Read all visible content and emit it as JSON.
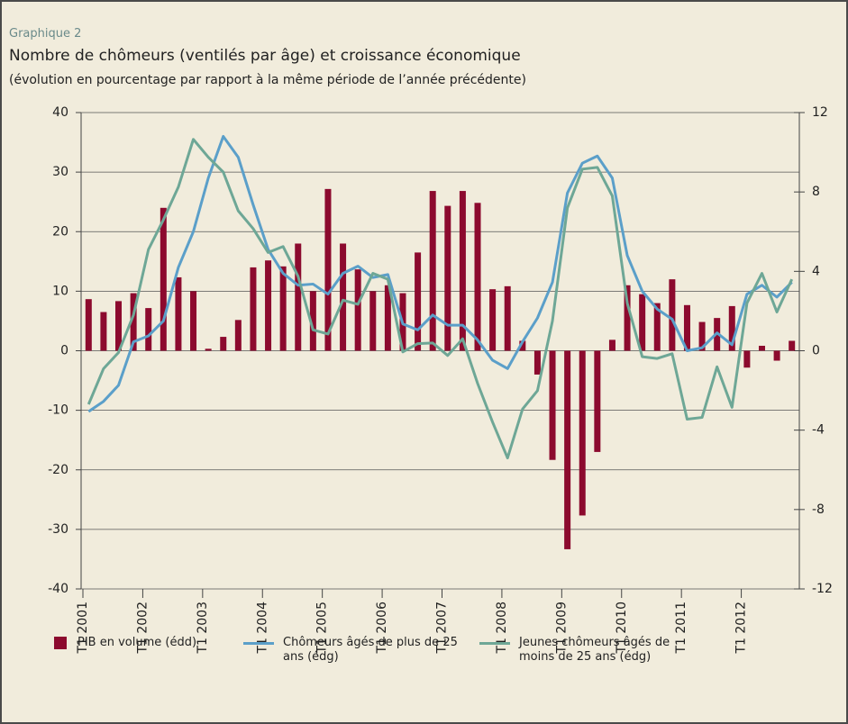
{
  "chart_data": {
    "type": "bar_line",
    "label": "Graphique 2",
    "title": "Nombre de chômeurs (ventilés par âge) et croissance économique",
    "subtitle": "(évolution en pourcentage par rapport à la même période de l’année précédente)",
    "categories": [
      "T1 2001",
      null,
      null,
      null,
      "T1 2002",
      null,
      null,
      null,
      "T1 2003",
      null,
      null,
      null,
      "T1 2004",
      null,
      null,
      null,
      "T1 2005",
      null,
      null,
      null,
      "T1 2006",
      null,
      null,
      null,
      "T1 2007",
      null,
      null,
      null,
      "T1 2008",
      null,
      null,
      null,
      "T1 2009",
      null,
      null,
      null,
      "T1 2010",
      null,
      null,
      null,
      "T1 2011",
      null,
      null,
      null,
      "T1 2012",
      null,
      null,
      null
    ],
    "ylim": [
      -40,
      40
    ],
    "yticks": [
      -40,
      -30,
      -20,
      -10,
      0,
      10,
      20,
      30,
      40
    ],
    "y2lim": [
      -12,
      12
    ],
    "y2ticks": [
      -12,
      -8,
      -4,
      0,
      4,
      8,
      12
    ],
    "grid": true,
    "series": [
      {
        "name": "PIB en volume (édd)",
        "type": "bar",
        "axis": "y2",
        "color": "#8c0a2e",
        "values": [
          2.6,
          1.95,
          2.5,
          2.9,
          2.15,
          7.2,
          3.7,
          3.0,
          0.1,
          0.7,
          1.55,
          4.2,
          4.55,
          4.25,
          5.4,
          3.0,
          8.15,
          5.4,
          4.1,
          3.0,
          3.3,
          2.9,
          4.95,
          8.05,
          7.3,
          8.05,
          7.45,
          3.1,
          3.25,
          0.5,
          -1.2,
          -5.5,
          -10,
          -8.3,
          -5.1,
          0.55,
          3.3,
          2.85,
          2.4,
          3.6,
          2.3,
          1.45,
          1.65,
          2.25,
          -0.85,
          0.25,
          -0.5,
          0.5
        ]
      },
      {
        "name": "Chômeurs âgés de plus de 25 ans (édg)",
        "type": "line",
        "color": "#5b9fc9",
        "values": [
          -10.2,
          -8.5,
          -5.8,
          1.5,
          2.5,
          5,
          14,
          20,
          29,
          36,
          32.5,
          24.5,
          17,
          13,
          11,
          11.2,
          9.5,
          13,
          14.2,
          12.3,
          12.8,
          4.5,
          3.5,
          6,
          4.3,
          4.3,
          1.8,
          -1.6,
          -3,
          1.5,
          5.5,
          11.5,
          26.5,
          31.5,
          32.7,
          29,
          16,
          10,
          7,
          5.3,
          0,
          0.5,
          3,
          1,
          9.5,
          11,
          9,
          11.5
        ]
      },
      {
        "name": "Jeunes chômeurs âgés de moins de 25 ans (édg)",
        "type": "line",
        "color": "#6ea796",
        "values": [
          -9,
          -3,
          -0.3,
          6,
          17,
          22,
          27.5,
          35.5,
          32.5,
          30,
          23.5,
          20.5,
          16.5,
          17.5,
          12.5,
          3.5,
          2.8,
          8.5,
          7.8,
          13,
          12,
          -0.2,
          1.2,
          1.3,
          -0.8,
          2,
          -5.5,
          -12,
          -18,
          -9.8,
          -6.7,
          5,
          24,
          30.5,
          30.8,
          26,
          8,
          -1,
          -1.3,
          -0.5,
          -11.5,
          -11.2,
          -2.7,
          -9.5,
          8,
          13,
          6.5,
          12
        ]
      }
    ]
  }
}
